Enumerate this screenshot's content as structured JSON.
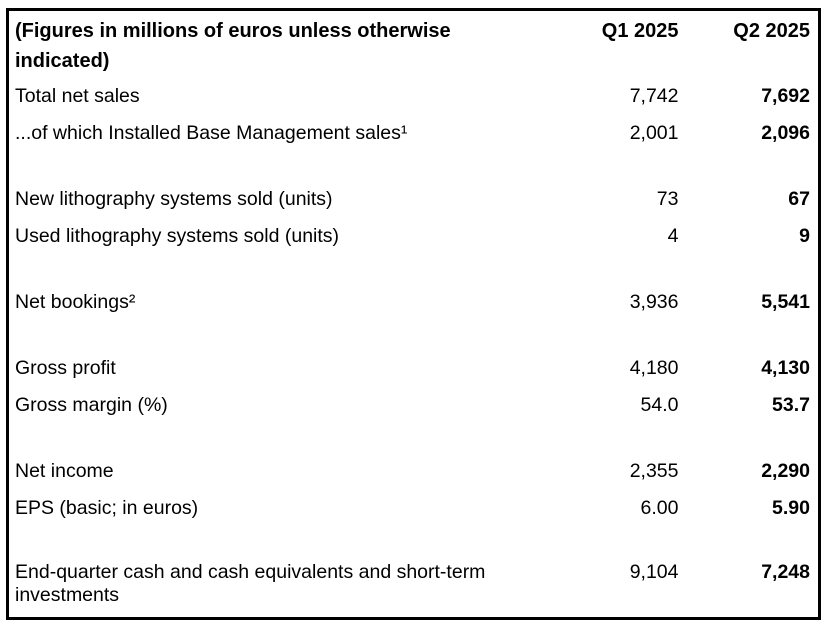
{
  "table": {
    "unit_note": "(Figures in millions of euros unless otherwise indicated)",
    "columns": [
      "Q1 2025",
      "Q2 2025"
    ],
    "rows": [
      {
        "label": "Total net sales",
        "q1": "7,742",
        "q2": "7,692"
      },
      {
        "label": "...of which Installed Base Management sales¹",
        "q1": "2,001",
        "q2": "2,096"
      },
      {
        "spacer": true
      },
      {
        "label": "New lithography systems sold (units)",
        "q1": "73",
        "q2": "67"
      },
      {
        "label": "Used lithography systems sold (units)",
        "q1": "4",
        "q2": "9"
      },
      {
        "spacer": true
      },
      {
        "label": "Net bookings²",
        "q1": "3,936",
        "q2": "5,541"
      },
      {
        "spacer": true
      },
      {
        "label": "Gross profit",
        "q1": "4,180",
        "q2": "4,130"
      },
      {
        "label": "Gross margin (%)",
        "q1": "54.0",
        "q2": "53.7"
      },
      {
        "spacer": true
      },
      {
        "label": "Net income",
        "q1": "2,355",
        "q2": "2,290"
      },
      {
        "label": "EPS (basic; in euros)",
        "q1": "6.00",
        "q2": "5.90"
      },
      {
        "spacer": true
      },
      {
        "label": "End-quarter cash and cash equivalents and short-term investments",
        "q1": "9,104",
        "q2": "7,248",
        "two_line": true
      }
    ],
    "colors": {
      "border": "#000000",
      "text": "#000000",
      "background": "#ffffff"
    }
  }
}
